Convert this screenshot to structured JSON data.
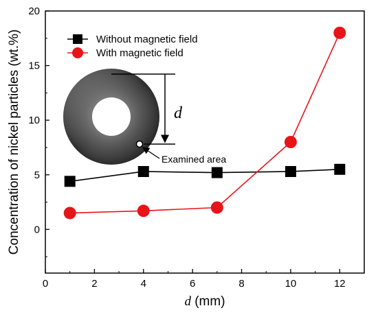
{
  "chart_data": {
    "type": "line",
    "xlabel_var": "d",
    "xlabel_unit": " (mm)",
    "ylabel": "Concentration of nickel particles (wt.%)",
    "xlim": [
      0,
      13
    ],
    "ylim": [
      -4,
      20
    ],
    "xticks": [
      0,
      2,
      4,
      6,
      8,
      10,
      12
    ],
    "yticks": [
      0,
      5,
      10,
      15,
      20
    ],
    "grid": false,
    "legend_position": "top-left",
    "series": [
      {
        "name": "Without magnetic field",
        "color": "#000000",
        "marker": "square",
        "x": [
          1,
          4,
          7,
          10,
          12
        ],
        "y": [
          4.4,
          5.3,
          5.2,
          5.3,
          5.5
        ]
      },
      {
        "name": "With magnetic field",
        "color": "#e8141a",
        "marker": "circle",
        "x": [
          1,
          4,
          7,
          10,
          12
        ],
        "y": [
          1.5,
          1.7,
          2.0,
          8.0,
          18.0
        ]
      }
    ],
    "annotations": {
      "inset_dimension_label": "d",
      "examined_area_label": "Examined area"
    }
  }
}
